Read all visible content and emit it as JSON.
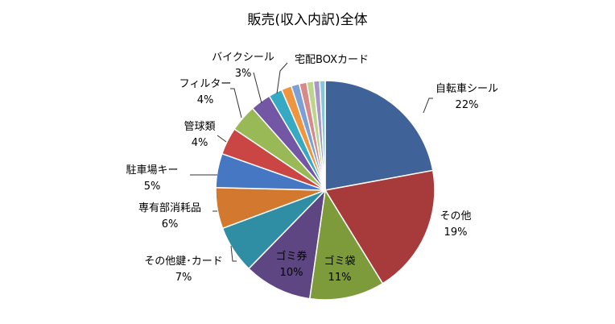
{
  "chart_data": {
    "type": "pie",
    "title": "販売(収入内訳)全体",
    "slices": [
      {
        "label": "自転車シール",
        "value_label": "22%",
        "value": 22,
        "color": "#3F6398"
      },
      {
        "label": "その他",
        "value_label": "19%",
        "value": 19,
        "color": "#A73A3A"
      },
      {
        "label": "ゴミ袋",
        "value_label": "11%",
        "value": 11,
        "color": "#7E9B3B"
      },
      {
        "label": "ゴミ券",
        "value_label": "10%",
        "value": 10,
        "color": "#5E4683"
      },
      {
        "label": "その他鍵･カード",
        "value_label": "7%",
        "value": 7,
        "color": "#2F8EA4"
      },
      {
        "label": "専有部消耗品",
        "value_label": "6%",
        "value": 6,
        "color": "#D2782F"
      },
      {
        "label": "駐車場キー",
        "value_label": "5%",
        "value": 5,
        "color": "#4577C3"
      },
      {
        "label": "管球類",
        "value_label": "4%",
        "value": 4,
        "color": "#C94644"
      },
      {
        "label": "フィルター",
        "value_label": "4%",
        "value": 4,
        "color": "#98B956"
      },
      {
        "label": "バイクシール",
        "value_label": "3%",
        "value": 3,
        "color": "#7357A4"
      },
      {
        "label": "宅配BOXカード",
        "value_label": "",
        "value": 2,
        "color": "#36A9C3"
      },
      {
        "label": "",
        "value_label": "",
        "value": 1.5,
        "color": "#F0953F"
      },
      {
        "label": "",
        "value_label": "",
        "value": 1.2,
        "color": "#7C9FD6"
      },
      {
        "label": "",
        "value_label": "",
        "value": 1.1,
        "color": "#D88A8A"
      },
      {
        "label": "",
        "value_label": "",
        "value": 1.0,
        "color": "#BDD48D"
      },
      {
        "label": "",
        "value_label": "",
        "value": 0.9,
        "color": "#A896C8"
      },
      {
        "label": "",
        "value_label": "",
        "value": 0.8,
        "color": "#88C7D8"
      }
    ]
  }
}
